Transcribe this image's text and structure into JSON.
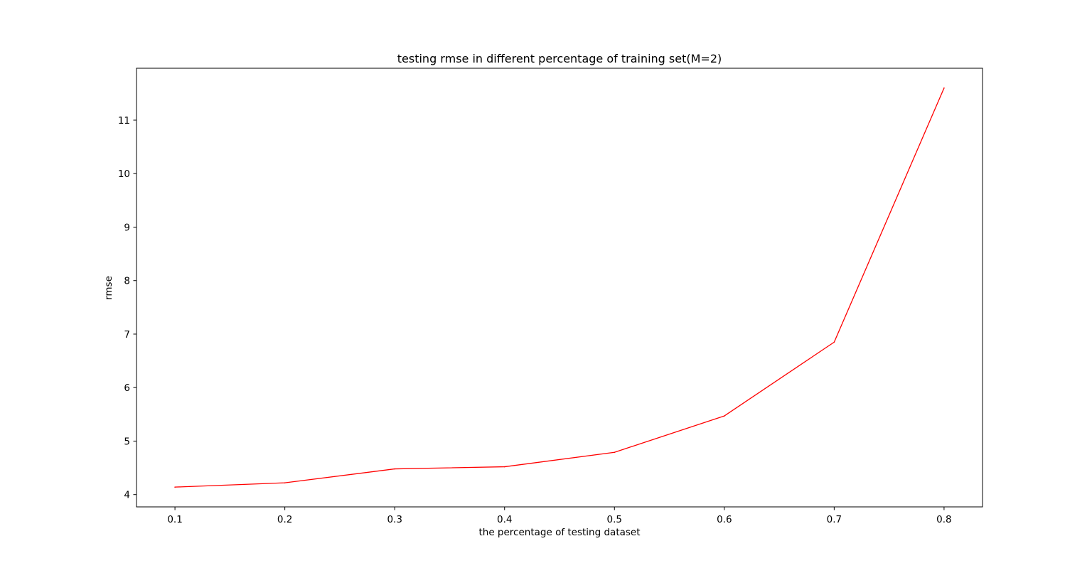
{
  "chart_data": {
    "type": "line",
    "title": "testing rmse in different percentage of training set(M=2)",
    "xlabel": "the percentage of testing dataset",
    "ylabel": "rmse",
    "x": [
      0.1,
      0.2,
      0.3,
      0.4,
      0.5,
      0.6,
      0.7,
      0.8
    ],
    "series": [
      {
        "values": [
          4.14,
          4.22,
          4.48,
          4.52,
          4.79,
          5.47,
          6.85,
          11.6
        ],
        "color": "#ff0000"
      }
    ],
    "xlim": [
      0.065,
      0.835
    ],
    "ylim": [
      3.77,
      11.97
    ],
    "xticks": [
      0.1,
      0.2,
      0.3,
      0.4,
      0.5,
      0.6,
      0.7,
      0.8
    ],
    "xtick_labels": [
      "0.1",
      "0.2",
      "0.3",
      "0.4",
      "0.5",
      "0.6",
      "0.7",
      "0.8"
    ],
    "yticks": [
      4,
      5,
      6,
      7,
      8,
      9,
      10,
      11
    ],
    "ytick_labels": [
      "4",
      "5",
      "6",
      "7",
      "8",
      "9",
      "10",
      "11"
    ],
    "grid": false,
    "legend": false
  }
}
